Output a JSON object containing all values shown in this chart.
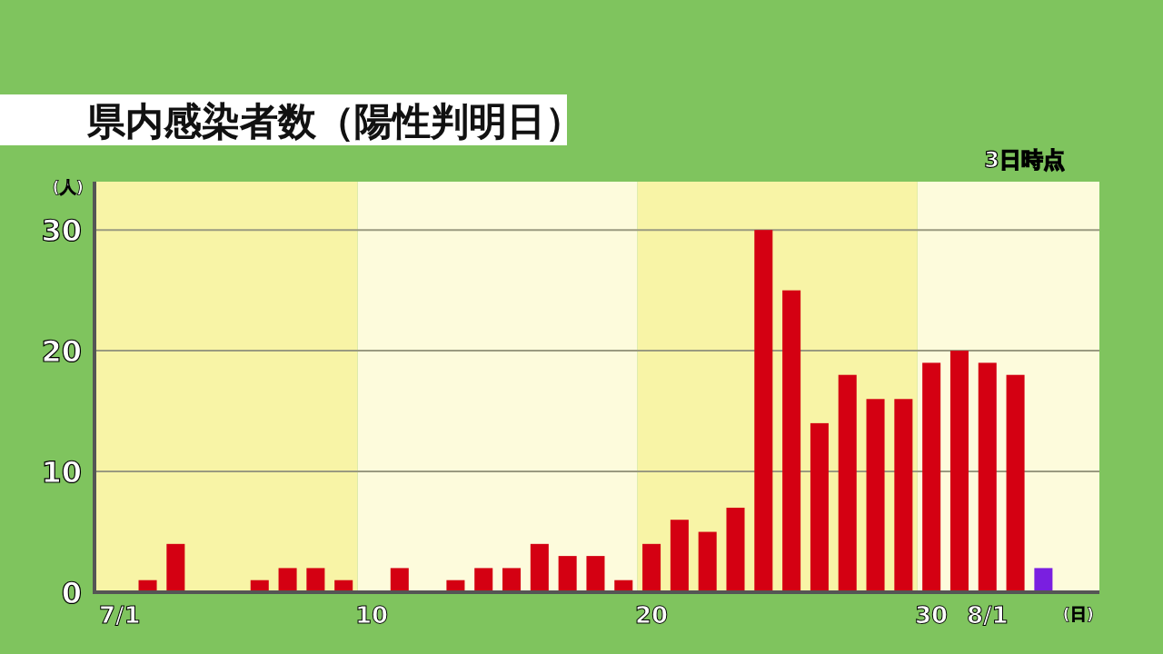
{
  "chart_data": {
    "type": "bar",
    "title": "県内感染者数（陽性判明日）",
    "ylabel": "(人)",
    "xlabel": "(日)",
    "annotations": [
      "3日時点"
    ],
    "x": [
      1,
      2,
      3,
      4,
      5,
      6,
      7,
      8,
      9,
      10,
      11,
      12,
      13,
      14,
      15,
      16,
      17,
      18,
      19,
      20,
      21,
      22,
      23,
      24,
      25,
      26,
      27,
      28,
      29,
      30,
      31,
      32,
      33,
      34
    ],
    "values": [
      0,
      1,
      4,
      0,
      0,
      1,
      2,
      2,
      1,
      0,
      2,
      0,
      1,
      2,
      2,
      4,
      3,
      3,
      1,
      4,
      6,
      5,
      7,
      30,
      25,
      14,
      18,
      16,
      16,
      19,
      20,
      19,
      18,
      2
    ],
    "colors": [
      "#d40012",
      "#d40012",
      "#d40012",
      "#d40012",
      "#d40012",
      "#d40012",
      "#d40012",
      "#d40012",
      "#d40012",
      "#d40012",
      "#d40012",
      "#d40012",
      "#d40012",
      "#d40012",
      "#d40012",
      "#d40012",
      "#d40012",
      "#d40012",
      "#d40012",
      "#d40012",
      "#d40012",
      "#d40012",
      "#d40012",
      "#d40012",
      "#d40012",
      "#d40012",
      "#d40012",
      "#d40012",
      "#d40012",
      "#d40012",
      "#d40012",
      "#d40012",
      "#d40012",
      "#7a1fe0"
    ],
    "xlim": [
      0.1,
      36
    ],
    "xticks": [
      {
        "value": 1,
        "label": "7/1"
      },
      10,
      20,
      30,
      {
        "value": 32,
        "label": "8/1"
      }
    ],
    "ylim": [
      0,
      34
    ],
    "yticks": [
      0,
      10,
      20,
      30
    ],
    "grid": "y",
    "bands": [
      {
        "axis": "x",
        "from": 0.1,
        "to": 9.5,
        "color": "#f8f4a6"
      },
      {
        "axis": "x",
        "from": 9.5,
        "to": 19.5,
        "color": "#fdfbdc"
      },
      {
        "axis": "x",
        "from": 19.5,
        "to": 29.5,
        "color": "#f8f4a6"
      },
      {
        "axis": "x",
        "from": 29.5,
        "to": 36,
        "color": "#fdfbdc"
      }
    ]
  }
}
